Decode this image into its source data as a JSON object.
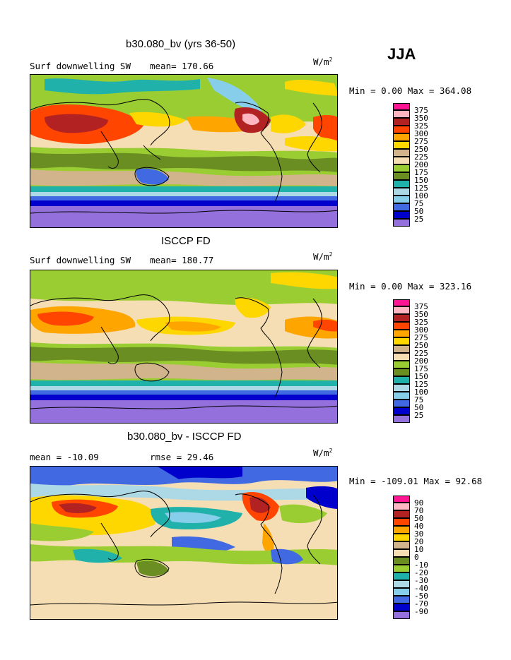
{
  "season": "JJA",
  "colors": {
    "c25": "#9370db",
    "c50": "#0000cd",
    "c75": "#4169e1",
    "c100": "#87ceeb",
    "c125": "#add8e6",
    "c150": "#20b2aa",
    "c175": "#9acd32",
    "c200": "#6b8e23",
    "c225": "#f5deb3",
    "c250": "#d2b48c",
    "c275": "#ffd700",
    "c300": "#ffa500",
    "c325": "#ff4500",
    "c350": "#b22222",
    "c375": "#ffb6c1",
    "c400": "#ff1493"
  },
  "panels": [
    {
      "title": "b30.080_bv (yrs 36-50)",
      "left_label": "Surf downwelling SW",
      "mid_label": "mean= 170.66",
      "units": "W/m",
      "units_sup": "2",
      "minmax": "Min =   0.00 Max = 364.08",
      "legend": [
        "375",
        "350",
        "325",
        "300",
        "275",
        "250",
        "225",
        "200",
        "175",
        "150",
        "125",
        "100",
        "75",
        "50",
        "25"
      ]
    },
    {
      "title": "ISCCP FD",
      "left_label": "Surf downwelling SW",
      "mid_label": "mean= 180.77",
      "units": "W/m",
      "units_sup": "2",
      "minmax": "Min =   0.00 Max = 323.16",
      "legend": [
        "375",
        "350",
        "325",
        "300",
        "275",
        "250",
        "225",
        "200",
        "175",
        "150",
        "125",
        "100",
        "75",
        "50",
        "25"
      ]
    },
    {
      "title": "b30.080_bv - ISCCP FD",
      "left_label": "mean = -10.09",
      "mid_label": "rmse =  29.46",
      "units": "W/m",
      "units_sup": "2",
      "minmax": "Min = -109.01 Max =  92.68",
      "legend": [
        "90",
        "70",
        "50",
        "40",
        "30",
        "20",
        "10",
        "0",
        "-10",
        "-20",
        "-30",
        "-40",
        "-50",
        "-70",
        "-90"
      ]
    }
  ]
}
